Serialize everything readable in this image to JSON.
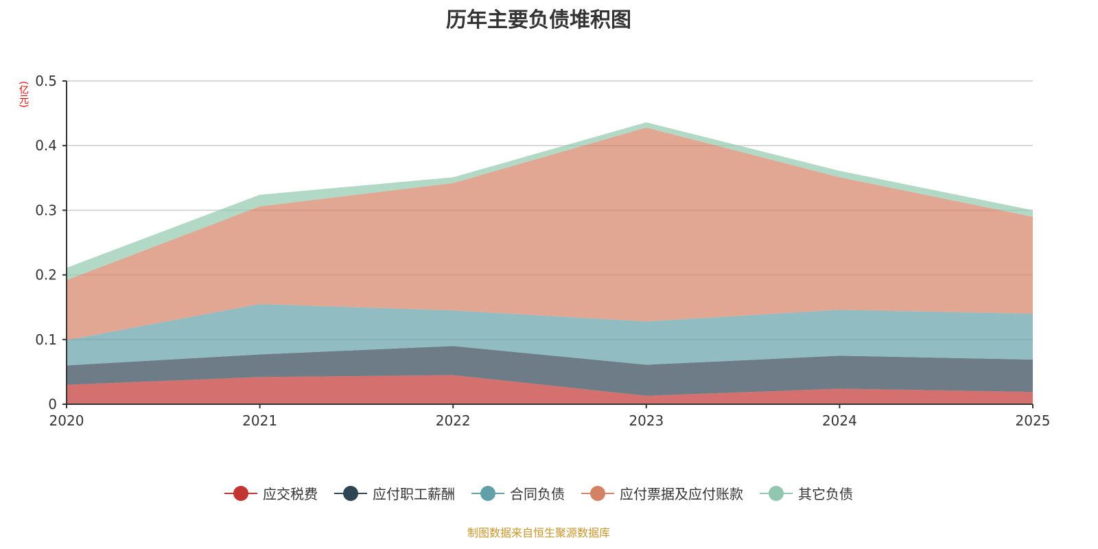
{
  "chart_data": {
    "type": "area",
    "stacked": true,
    "title": "历年主要负债堆积图",
    "ylabel": "(亿元)",
    "xlabel": "",
    "categories": [
      "2020",
      "2021",
      "2022",
      "2023",
      "2024",
      "2025"
    ],
    "ylim": [
      0,
      0.5
    ],
    "yticks": [
      "0",
      "0.1",
      "0.2",
      "0.3",
      "0.4",
      "0.5"
    ],
    "grid": true,
    "legend_position": "bottom",
    "series": [
      {
        "name": "应交税费",
        "color": "#c23531",
        "values": [
          0.03,
          0.042,
          0.045,
          0.013,
          0.024,
          0.019
        ]
      },
      {
        "name": "应付职工薪酬",
        "color": "#2f4554",
        "values": [
          0.03,
          0.035,
          0.045,
          0.048,
          0.051,
          0.05
        ]
      },
      {
        "name": "合同负债",
        "color": "#61a0a8",
        "values": [
          0.039,
          0.078,
          0.055,
          0.067,
          0.071,
          0.071
        ]
      },
      {
        "name": "应付票据及应付账款",
        "color": "#d48265",
        "values": [
          0.093,
          0.151,
          0.197,
          0.3,
          0.205,
          0.15
        ]
      },
      {
        "name": "其它负债",
        "color": "#91c7ae",
        "values": [
          0.019,
          0.018,
          0.009,
          0.008,
          0.01,
          0.01
        ]
      }
    ]
  },
  "source": "制图数据来自恒生聚源数据库"
}
